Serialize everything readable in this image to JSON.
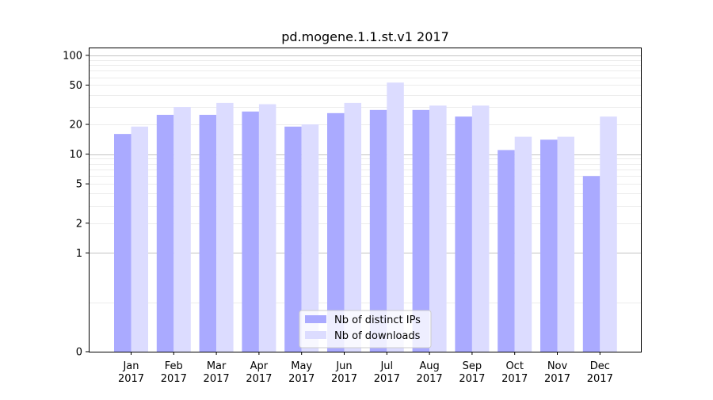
{
  "chart_data": {
    "type": "bar",
    "title": "pd.mogene.1.1.st.v1 2017",
    "xlabel": "",
    "ylabel": "",
    "y_scale": "symlog",
    "ylim": [
      0,
      120
    ],
    "y_ticks": [
      0,
      1,
      2,
      5,
      10,
      20,
      50,
      100
    ],
    "y_tick_labels": [
      "0",
      "1",
      "2",
      "5",
      "10",
      "20",
      "50",
      "100"
    ],
    "categories": [
      [
        "Jan",
        "2017"
      ],
      [
        "Feb",
        "2017"
      ],
      [
        "Mar",
        "2017"
      ],
      [
        "Apr",
        "2017"
      ],
      [
        "May",
        "2017"
      ],
      [
        "Jun",
        "2017"
      ],
      [
        "Jul",
        "2017"
      ],
      [
        "Aug",
        "2017"
      ],
      [
        "Sep",
        "2017"
      ],
      [
        "Oct",
        "2017"
      ],
      [
        "Nov",
        "2017"
      ],
      [
        "Dec",
        "2017"
      ]
    ],
    "series": [
      {
        "name": "Nb of distinct IPs",
        "color": "#aaaaff",
        "values": [
          16,
          25,
          25,
          27,
          19,
          26,
          28,
          28,
          24,
          11,
          14,
          6
        ]
      },
      {
        "name": "Nb of downloads",
        "color": "#dcdcff",
        "values": [
          19,
          30,
          33,
          32,
          20,
          33,
          53,
          31,
          31,
          15,
          15,
          24
        ]
      }
    ],
    "grid": true,
    "legend_position": "bottom-center"
  }
}
